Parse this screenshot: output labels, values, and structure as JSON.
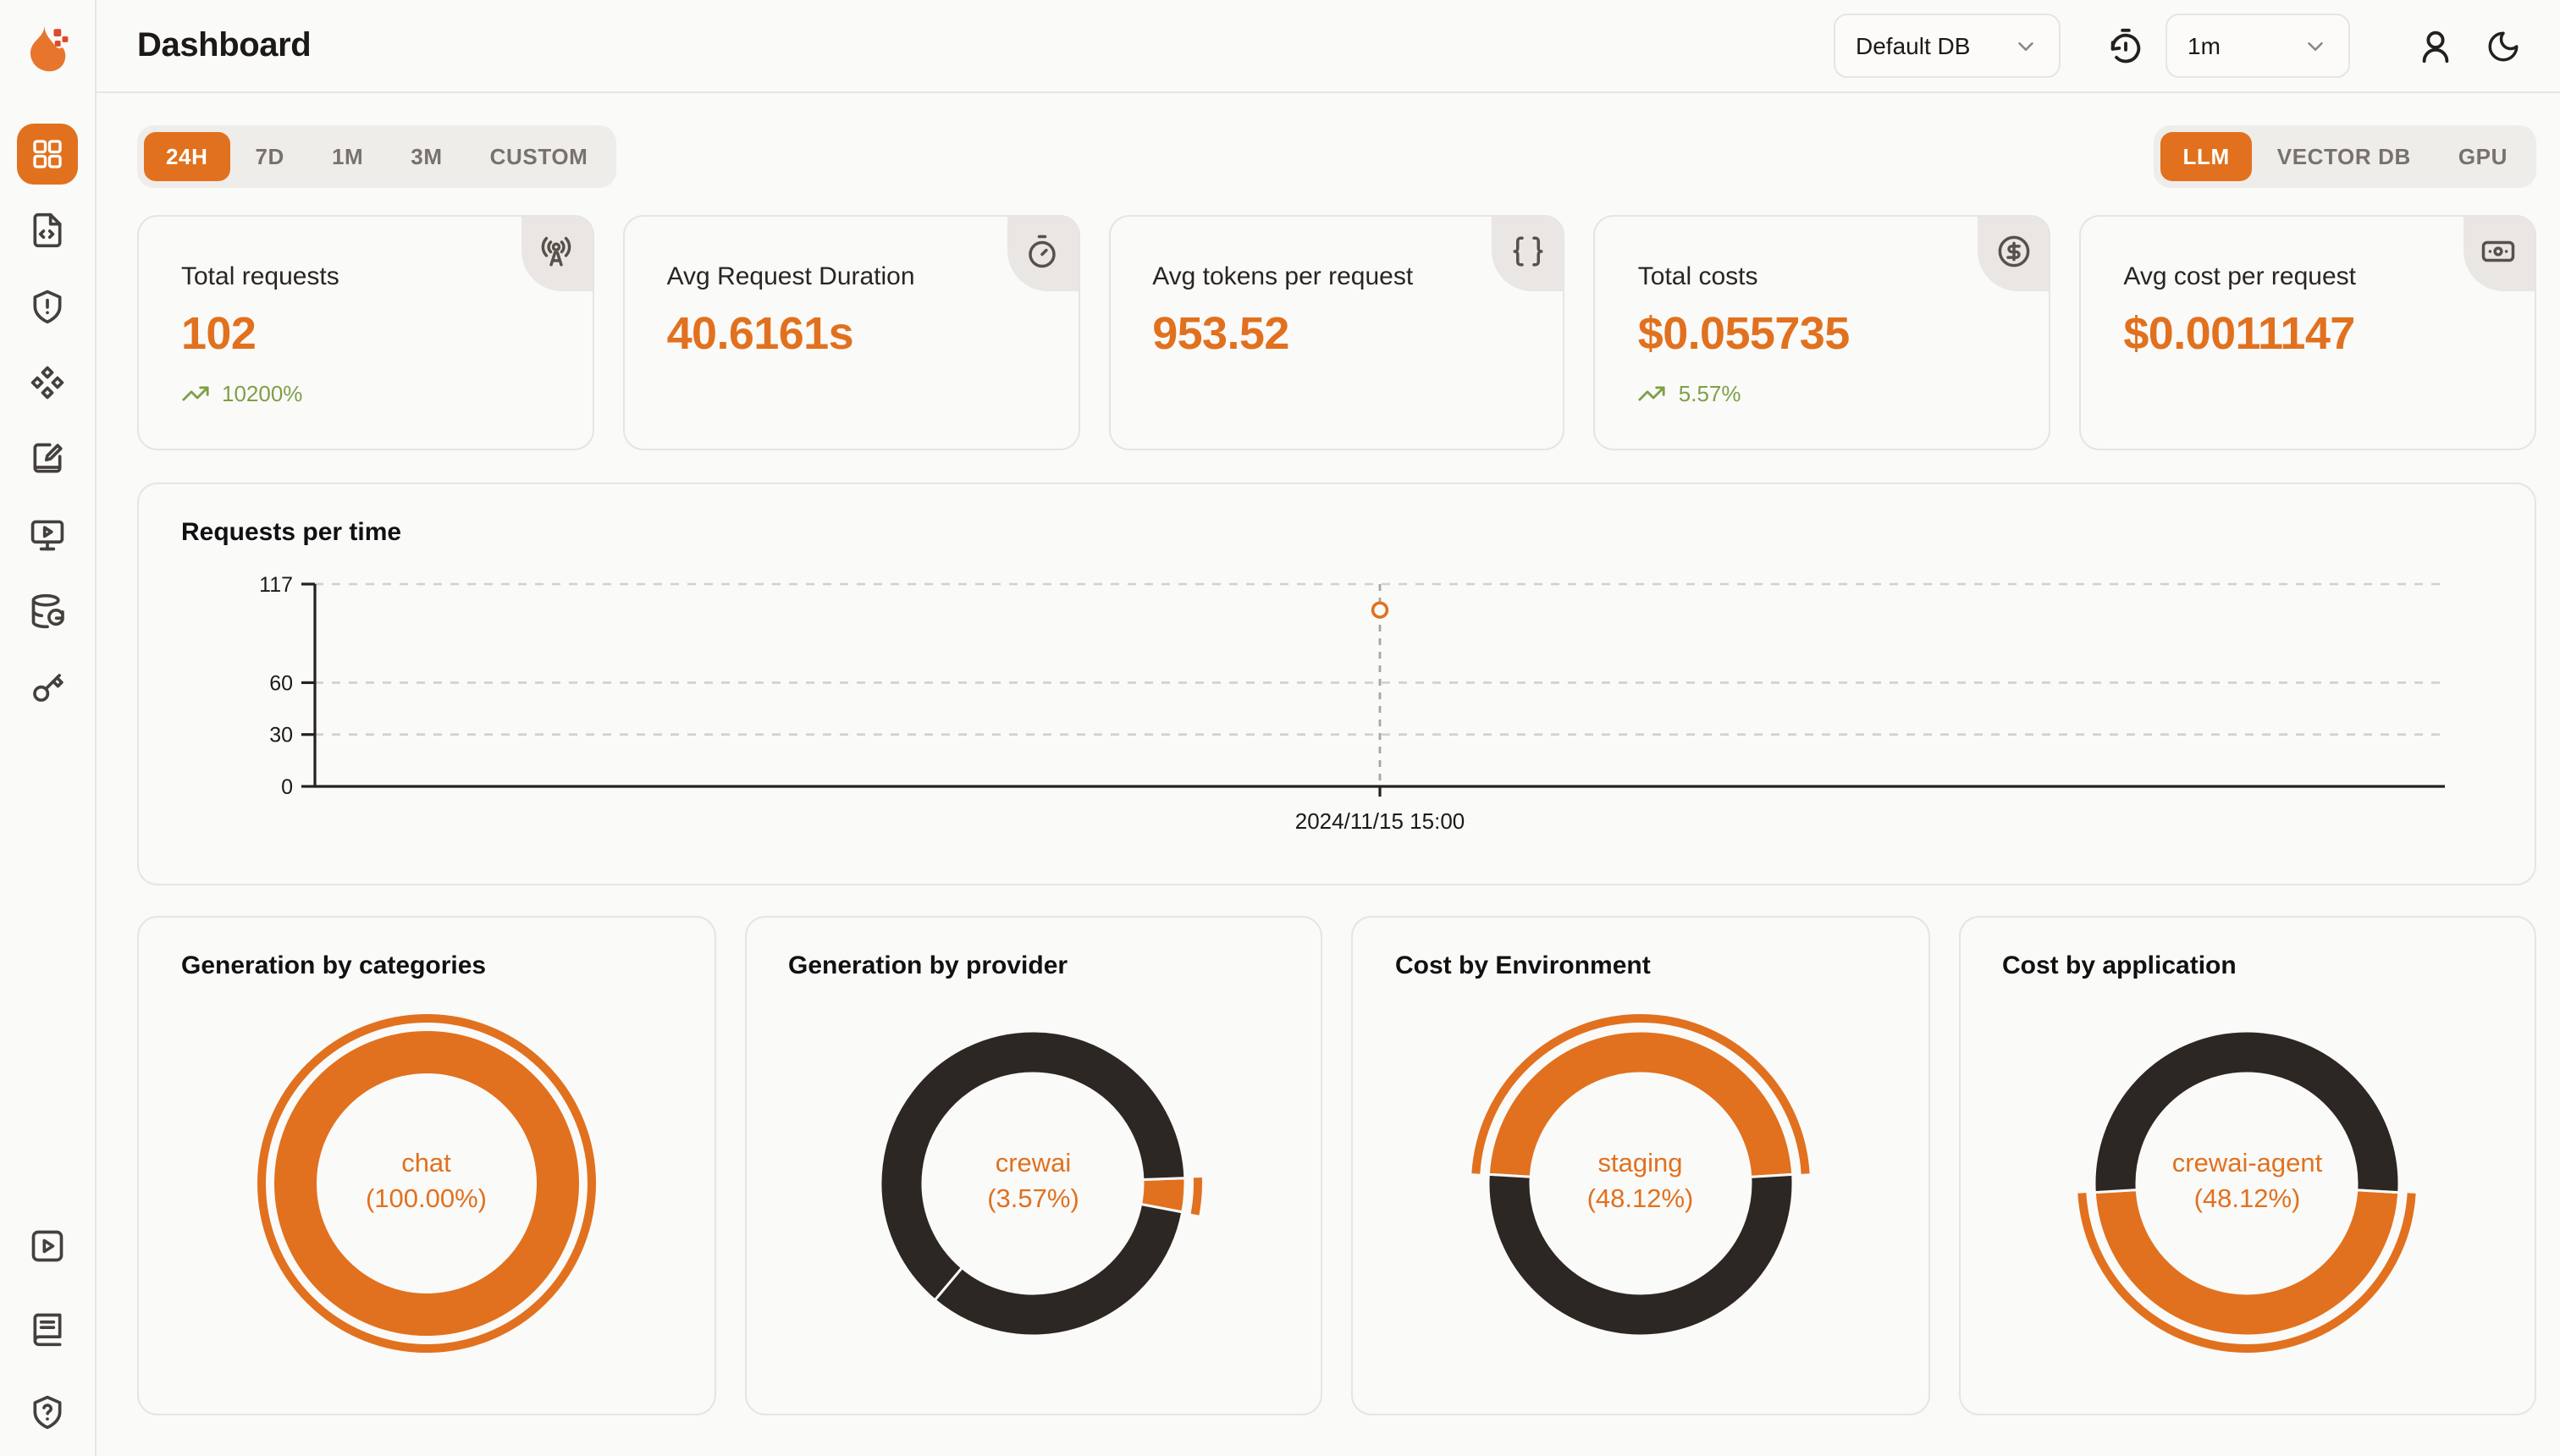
{
  "colors": {
    "accent_orange": "#E1711E",
    "donut_dark": "#2D2724",
    "trend_green": "#7EA046"
  },
  "header": {
    "title": "Dashboard",
    "database_select": {
      "value": "Default DB"
    },
    "interval_select": {
      "value": "1m"
    }
  },
  "sidebar": {
    "items": [
      {
        "id": "dashboard",
        "icon": "layout-grid-icon",
        "active": true
      },
      {
        "id": "requests",
        "icon": "file-code-icon",
        "active": false
      },
      {
        "id": "exceptions",
        "icon": "shield-alert-icon",
        "active": false
      },
      {
        "id": "prompt-hub",
        "icon": "component-diamonds-icon",
        "active": false
      },
      {
        "id": "vault",
        "icon": "notebook-pen-icon",
        "active": false
      },
      {
        "id": "playground",
        "icon": "monitor-play-icon",
        "active": false
      },
      {
        "id": "databases",
        "icon": "database-refresh-icon",
        "active": false
      },
      {
        "id": "api-keys",
        "icon": "key-icon",
        "active": false
      }
    ],
    "bottom_items": [
      {
        "id": "getting-started",
        "icon": "square-play-icon"
      },
      {
        "id": "documentation",
        "icon": "book-icon"
      },
      {
        "id": "support",
        "icon": "shield-question-icon"
      }
    ]
  },
  "time_range_tabs": {
    "active": "24H",
    "items": [
      "24H",
      "7D",
      "1M",
      "3M",
      "CUSTOM"
    ]
  },
  "scope_tabs": {
    "active": "LLM",
    "items": [
      "LLM",
      "VECTOR DB",
      "GPU"
    ]
  },
  "stat_cards": [
    {
      "label": "Total requests",
      "value": "102",
      "trend": "10200%",
      "icon": "radio-tower-icon"
    },
    {
      "label": "Avg Request Duration",
      "value": "40.6161s",
      "trend": "",
      "icon": "timer-icon"
    },
    {
      "label": "Avg tokens per request",
      "value": "953.52",
      "trend": "",
      "icon": "braces-icon"
    },
    {
      "label": "Total costs",
      "value": "$0.055735",
      "trend": "5.57%",
      "icon": "circle-dollar-icon"
    },
    {
      "label": "Avg cost per request",
      "value": "$0.0011147",
      "trend": "",
      "icon": "banknote-icon"
    }
  ],
  "chart_data": [
    {
      "type": "scatter",
      "title": "Requests per time",
      "x": [
        "2024/11/15 15:00"
      ],
      "series": [
        {
          "name": "requests",
          "values": [
            102
          ]
        }
      ],
      "ylim": [
        0,
        117
      ],
      "yticks": [
        0,
        30,
        60,
        117
      ],
      "grid": "horizontal-dashed",
      "legend": "none",
      "point_x_fraction": 0.5
    },
    {
      "type": "pie",
      "title": "Generation by categories",
      "center_label": {
        "name": "chat",
        "pct": "(100.00%)"
      },
      "start_angle": 90,
      "highlight": 0,
      "segments": [
        {
          "label": "chat",
          "value": 100,
          "color": "orange"
        }
      ]
    },
    {
      "type": "pie",
      "title": "Generation by provider",
      "center_label": {
        "name": "crewai",
        "pct": "(3.57%)"
      },
      "start_angle": 2,
      "highlight": 0,
      "segments": [
        {
          "label": "crewai",
          "value": 3.57,
          "color": "orange"
        },
        {
          "label": "other",
          "value": 33.1,
          "color": "dark"
        },
        {
          "label": "other",
          "value": 63.33,
          "color": "dark"
        }
      ]
    },
    {
      "type": "pie",
      "title": "Cost by Environment",
      "center_label": {
        "name": "staging",
        "pct": "(48.12%)"
      },
      "start_angle": 176.6,
      "highlight": 0,
      "segments": [
        {
          "label": "staging",
          "value": 48.12,
          "color": "orange"
        },
        {
          "label": "other",
          "value": 51.88,
          "color": "dark"
        }
      ]
    },
    {
      "type": "pie",
      "title": "Cost by application",
      "center_label": {
        "name": "crewai-agent",
        "pct": "(48.12%)"
      },
      "start_angle": -3.4,
      "highlight": 0,
      "segments": [
        {
          "label": "crewai-agent",
          "value": 48.12,
          "color": "orange"
        },
        {
          "label": "other",
          "value": 51.88,
          "color": "dark"
        }
      ]
    }
  ]
}
